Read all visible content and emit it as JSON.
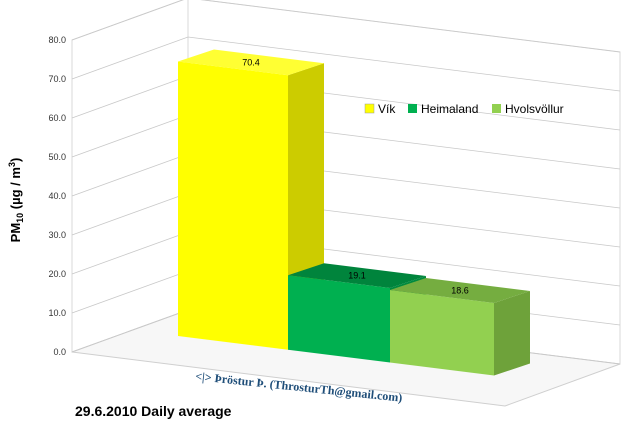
{
  "chart_data": {
    "type": "bar",
    "categories": [
      "Vík",
      "Heimaland",
      "Hvolsvöllur"
    ],
    "values": [
      70.4,
      19.1,
      18.6
    ],
    "data_labels": [
      "70.4",
      "19.1",
      "18.6"
    ],
    "ylabel_main": "PM",
    "ylabel_sub": "10",
    "ylabel_unit": " (µg / m",
    "ylabel_sup": "3",
    "ylabel_end": ")",
    "ylim": [
      0,
      80
    ],
    "yticks": [
      "0.0",
      "10.0",
      "20.0",
      "30.0",
      "40.0",
      "50.0",
      "60.0",
      "70.0",
      "80.0"
    ],
    "grid": true,
    "legend_position": "right",
    "colors": [
      "#ffff00",
      "#00b050",
      "#92d050"
    ],
    "side_colors": [
      "#cccc00",
      "#008a3e",
      "#6ea23a"
    ],
    "top_colors": [
      "#ffff33",
      "#00843c",
      "#75ad40"
    ],
    "subtitle": "29.6.2010 Daily average",
    "credit": "<|> Þröstur Þ. (ThrosturTh@gmail.com)"
  }
}
